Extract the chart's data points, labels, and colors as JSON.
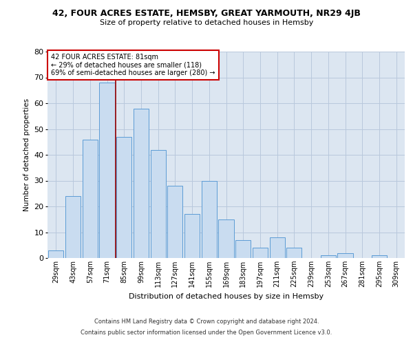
{
  "title": "42, FOUR ACRES ESTATE, HEMSBY, GREAT YARMOUTH, NR29 4JB",
  "subtitle": "Size of property relative to detached houses in Hemsby",
  "xlabel": "Distribution of detached houses by size in Hemsby",
  "ylabel": "Number of detached properties",
  "categories": [
    "29sqm",
    "43sqm",
    "57sqm",
    "71sqm",
    "85sqm",
    "99sqm",
    "113sqm",
    "127sqm",
    "141sqm",
    "155sqm",
    "169sqm",
    "183sqm",
    "197sqm",
    "211sqm",
    "225sqm",
    "239sqm",
    "253sqm",
    "267sqm",
    "281sqm",
    "295sqm",
    "309sqm"
  ],
  "values": [
    3,
    24,
    46,
    68,
    47,
    58,
    42,
    28,
    17,
    30,
    15,
    7,
    4,
    8,
    4,
    0,
    1,
    2,
    0,
    1,
    0
  ],
  "bar_color": "#c9dcf0",
  "bar_edge_color": "#5b9bd5",
  "grid_color": "#b8c8dc",
  "background_color": "#dce6f1",
  "vline_position": 3.5,
  "vline_color": "#990000",
  "annotation_text": "42 FOUR ACRES ESTATE: 81sqm\n← 29% of detached houses are smaller (118)\n69% of semi-detached houses are larger (280) →",
  "annotation_box_facecolor": "#ffffff",
  "annotation_box_edgecolor": "#cc0000",
  "footer_line1": "Contains HM Land Registry data © Crown copyright and database right 2024.",
  "footer_line2": "Contains public sector information licensed under the Open Government Licence v3.0.",
  "ylim": [
    0,
    80
  ],
  "yticks": [
    0,
    10,
    20,
    30,
    40,
    50,
    60,
    70,
    80
  ]
}
